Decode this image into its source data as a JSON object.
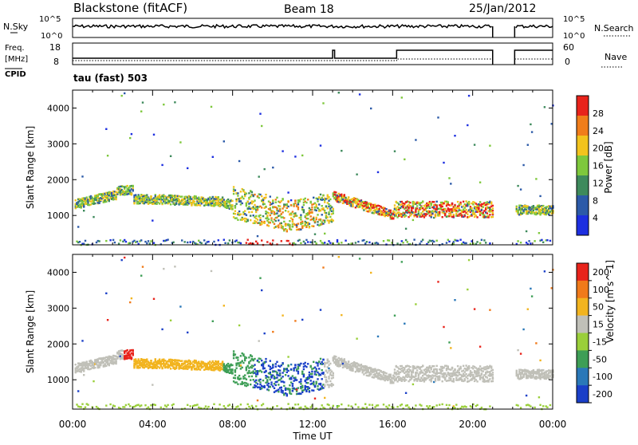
{
  "header": {
    "station": "Blackstone (fitACF)",
    "beam": "Beam 18",
    "date": "25/Jan/2012"
  },
  "noise_panel": {
    "left_label": "N.Sky",
    "right_label": "N.Search",
    "tick_top": "10^5",
    "tick_bottom": "10^0"
  },
  "freq_panel": {
    "left_label_1": "Freq.",
    "left_label_2": "[MHz]",
    "left_label_3": "CPID",
    "right_label": "Nave",
    "left_tick_top": "18",
    "left_tick_bottom": "8",
    "right_tick_top": "60",
    "right_tick_bottom": "0"
  },
  "cpid_line": "tau (fast) 503",
  "chart_data": [
    {
      "type": "heatmap",
      "name": "power",
      "ylabel": "Slant Range [km]",
      "ylim": [
        180,
        4500
      ],
      "yticks": [
        "1000",
        "2000",
        "3000",
        "4000"
      ],
      "colorbar": {
        "label": "Power [dB]",
        "ticks": [
          "4",
          "8",
          "12",
          "16",
          "20",
          "24",
          "28"
        ],
        "colors": [
          "#1d2fe0",
          "#2c5aa8",
          "#3e8a5c",
          "#7ec83c",
          "#f2c31d",
          "#f07d1a",
          "#e8231b"
        ]
      }
    },
    {
      "type": "heatmap",
      "name": "velocity",
      "ylabel": "Slant Range [km]",
      "ylim": [
        180,
        4500
      ],
      "yticks": [
        "1000",
        "2000",
        "3000",
        "4000"
      ],
      "colorbar": {
        "label": "Velocity [m s^-1]",
        "ticks": [
          "200",
          "100",
          "50",
          "15",
          "-15",
          "-50",
          "-100",
          "-200"
        ],
        "colors": [
          "#1a3fc8",
          "#2a78b8",
          "#3e9e56",
          "#9acf3a",
          "#c0c0b8",
          "#f2b41f",
          "#f07a1a",
          "#e8231b"
        ]
      }
    }
  ],
  "time_axis": {
    "label": "Time UT",
    "ticks": [
      "00:00",
      "04:00",
      "08:00",
      "12:00",
      "16:00",
      "20:00",
      "00:00"
    ]
  }
}
